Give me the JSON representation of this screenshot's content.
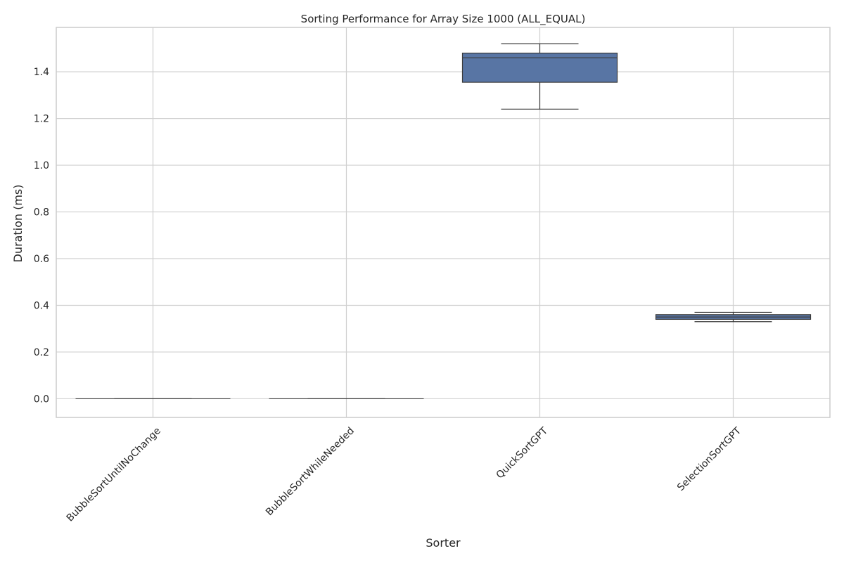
{
  "chart_data": {
    "type": "box",
    "title": "Sorting Performance for Array Size 1000 (ALL_EQUAL)",
    "xlabel": "Sorter",
    "ylabel": "Duration (ms)",
    "ylim": [
      -0.08,
      1.59
    ],
    "yticks": [
      0.0,
      0.2,
      0.4,
      0.6,
      0.8,
      1.0,
      1.2,
      1.4
    ],
    "ytick_labels": [
      "0.0",
      "0.2",
      "0.4",
      "0.6",
      "0.8",
      "1.0",
      "1.2",
      "1.4"
    ],
    "grid": true,
    "categories": [
      "BubbleSortUntilNoChange",
      "BubbleSortWhileNeeded",
      "QuickSortGPT",
      "SelectionSortGPT"
    ],
    "boxes": [
      {
        "category": "BubbleSortUntilNoChange",
        "whisker_low": 0.0,
        "q1": 0.0,
        "median": 0.0,
        "q3": 0.0,
        "whisker_high": 0.0
      },
      {
        "category": "BubbleSortWhileNeeded",
        "whisker_low": 0.0,
        "q1": 0.0,
        "median": 0.0,
        "q3": 0.0,
        "whisker_high": 0.0
      },
      {
        "category": "QuickSortGPT",
        "whisker_low": 1.24,
        "q1": 1.355,
        "median": 1.46,
        "q3": 1.48,
        "whisker_high": 1.52
      },
      {
        "category": "SelectionSortGPT",
        "whisker_low": 0.33,
        "q1": 0.34,
        "median": 0.35,
        "q3": 0.36,
        "whisker_high": 0.37
      }
    ],
    "colors": {
      "box_fill": "#5875a4",
      "box_edge": "#3b3b3b",
      "grid": "#d0d0d0",
      "spine": "#cccccc",
      "text": "#262626"
    }
  }
}
